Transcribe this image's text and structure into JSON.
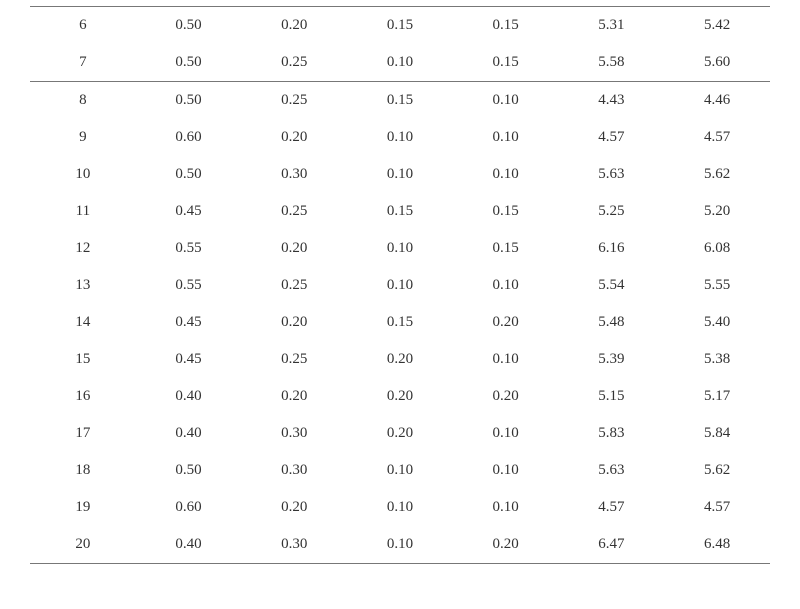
{
  "table": {
    "type": "table",
    "columns": 7,
    "background_color": "#ffffff",
    "text_color": "#333333",
    "border_color": "#777777",
    "font_family": "Times New Roman",
    "cell_fontsize": 15,
    "row_padding_v": 10,
    "col_widths_pct": [
      14.3,
      14.3,
      14.3,
      14.3,
      14.3,
      14.3,
      14.3
    ],
    "alignment": [
      "center",
      "center",
      "center",
      "center",
      "center",
      "center",
      "center"
    ],
    "groups": [
      {
        "rule_top": true,
        "rule_bottom": true,
        "rows": [
          [
            "6",
            "0.50",
            "0.20",
            "0.15",
            "0.15",
            "5.31",
            "5.42"
          ],
          [
            "7",
            "0.50",
            "0.25",
            "0.10",
            "0.15",
            "5.58",
            "5.60"
          ]
        ]
      },
      {
        "rule_top": false,
        "rule_bottom": true,
        "rows": [
          [
            "8",
            "0.50",
            "0.25",
            "0.15",
            "0.10",
            "4.43",
            "4.46"
          ],
          [
            "9",
            "0.60",
            "0.20",
            "0.10",
            "0.10",
            "4.57",
            "4.57"
          ],
          [
            "10",
            "0.50",
            "0.30",
            "0.10",
            "0.10",
            "5.63",
            "5.62"
          ],
          [
            "11",
            "0.45",
            "0.25",
            "0.15",
            "0.15",
            "5.25",
            "5.20"
          ],
          [
            "12",
            "0.55",
            "0.20",
            "0.10",
            "0.15",
            "6.16",
            "6.08"
          ],
          [
            "13",
            "0.55",
            "0.25",
            "0.10",
            "0.10",
            "5.54",
            "5.55"
          ],
          [
            "14",
            "0.45",
            "0.20",
            "0.15",
            "0.20",
            "5.48",
            "5.40"
          ],
          [
            "15",
            "0.45",
            "0.25",
            "0.20",
            "0.10",
            "5.39",
            "5.38"
          ],
          [
            "16",
            "0.40",
            "0.20",
            "0.20",
            "0.20",
            "5.15",
            "5.17"
          ],
          [
            "17",
            "0.40",
            "0.30",
            "0.20",
            "0.10",
            "5.83",
            "5.84"
          ],
          [
            "18",
            "0.50",
            "0.30",
            "0.10",
            "0.10",
            "5.63",
            "5.62"
          ],
          [
            "19",
            "0.60",
            "0.20",
            "0.10",
            "0.10",
            "4.57",
            "4.57"
          ],
          [
            "20",
            "0.40",
            "0.30",
            "0.10",
            "0.20",
            "6.47",
            "6.48"
          ]
        ]
      }
    ]
  }
}
